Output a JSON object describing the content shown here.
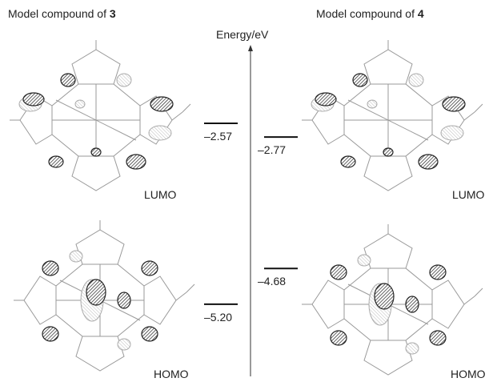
{
  "left": {
    "title": "Model compound of ",
    "compound": "3",
    "levels": [
      {
        "value": -2.57,
        "label": "–2.57",
        "orbital": "LUMO"
      },
      {
        "value": -5.2,
        "label": "–5.20",
        "orbital": "HOMO"
      }
    ]
  },
  "right": {
    "title": "Model compound of ",
    "compound": "4",
    "levels": [
      {
        "value": -2.77,
        "label": "–2.77",
        "orbital": "LUMO"
      },
      {
        "value": -4.68,
        "label": "–4.68",
        "orbital": "HOMO"
      }
    ]
  },
  "axis_label": "Energy/eV"
}
